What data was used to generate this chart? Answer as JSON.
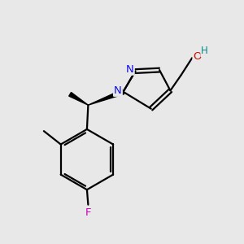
{
  "bg_color": "#e8e8e8",
  "atom_colors": {
    "C": "#000000",
    "N": "#1010ee",
    "O": "#cc1100",
    "F": "#cc00bb",
    "H": "#008888"
  },
  "bond_color": "#000000",
  "bond_width": 1.6,
  "figsize": [
    3.0,
    3.0
  ],
  "dpi": 100,
  "scale": 10
}
